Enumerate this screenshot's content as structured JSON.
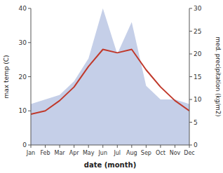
{
  "chart_data": {
    "type": "line",
    "xlabel": "date (month)",
    "ylabel": "max temp (C)",
    "y2label": "med. precipitation (kg/m2)",
    "categories": [
      "Jan",
      "Feb",
      "Mar",
      "Apr",
      "May",
      "Jun",
      "Jul",
      "Aug",
      "Sep",
      "Oct",
      "Nov",
      "Dec"
    ],
    "series": [
      {
        "type": "area",
        "axis": "y2",
        "color": "#c5cfe8",
        "values": [
          9,
          10,
          11,
          14,
          19,
          30,
          20,
          27,
          13,
          10,
          10,
          9
        ]
      },
      {
        "type": "line",
        "color": "#c0392b",
        "values": [
          9,
          10,
          13,
          17,
          23,
          28,
          27,
          28,
          22,
          17,
          13,
          10
        ]
      }
    ],
    "ylim": [
      0,
      40
    ],
    "yticks": [
      0,
      10,
      20,
      30,
      40
    ],
    "y2lim": [
      0,
      30
    ],
    "y2ticks": [
      0,
      5,
      10,
      15,
      20,
      25,
      30
    ],
    "grid": false
  }
}
